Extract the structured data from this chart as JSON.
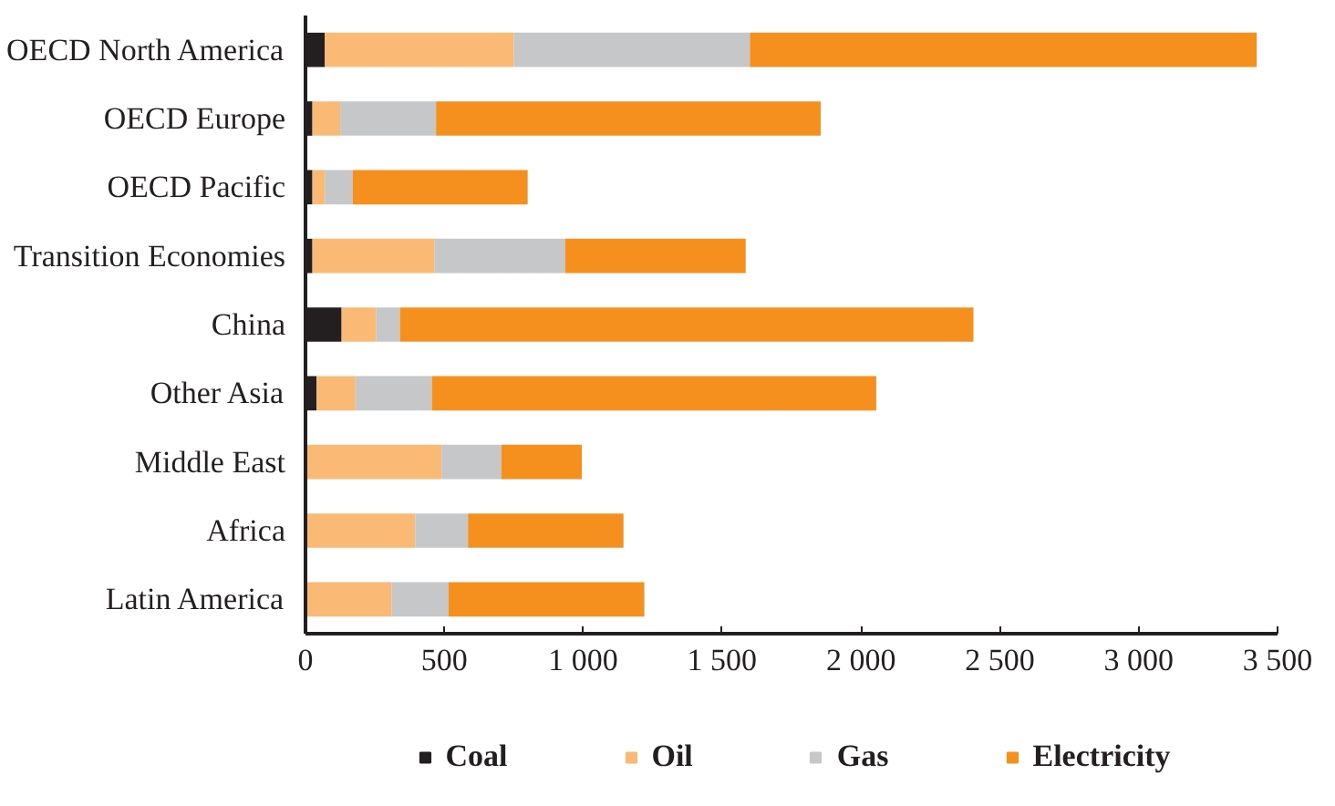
{
  "chart_data": {
    "type": "bar",
    "orientation": "horizontal",
    "stacked": true,
    "categories": [
      "OECD North America",
      "OECD Europe",
      "OECD Pacific",
      "Transition Economies",
      "China",
      "Other Asia",
      "Middle East",
      "Africa",
      "Latin America"
    ],
    "series": [
      {
        "name": "Coal",
        "color": "#231f20",
        "values": [
          70,
          25,
          25,
          25,
          130,
          40,
          0,
          5,
          0
        ]
      },
      {
        "name": "Oil",
        "color": "#fbb976",
        "values": [
          680,
          100,
          45,
          440,
          125,
          140,
          490,
          390,
          310
        ]
      },
      {
        "name": "Gas",
        "color": "#c6c7c8",
        "values": [
          850,
          345,
          100,
          470,
          85,
          275,
          215,
          190,
          205
        ]
      },
      {
        "name": "Electricity",
        "color": "#f5901e",
        "values": [
          1825,
          1385,
          630,
          650,
          2065,
          1600,
          290,
          560,
          705
        ]
      }
    ],
    "xlim": [
      0,
      3500
    ],
    "xticks": [
      0,
      500,
      {
        "value": 1000,
        "label": "1 000"
      },
      {
        "value": 1500,
        "label": "1 500"
      },
      {
        "value": 2000,
        "label": "2 000"
      },
      {
        "value": 2500,
        "label": "2 500"
      },
      {
        "value": 3000,
        "label": "3 000"
      },
      {
        "value": 3500,
        "label": "3 500"
      }
    ],
    "grid": false,
    "legend": "bottom"
  }
}
